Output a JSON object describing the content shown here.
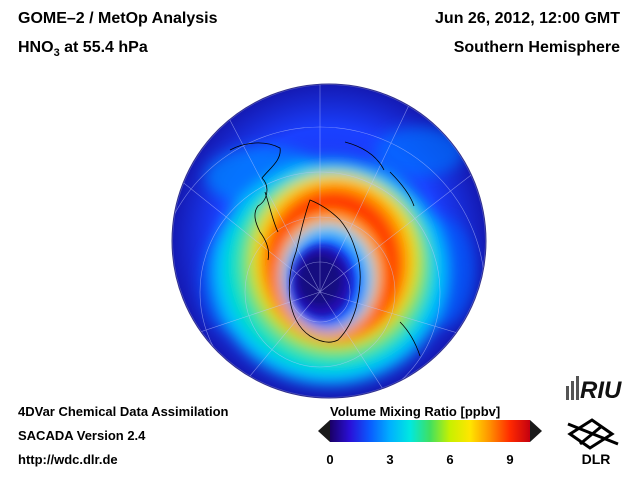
{
  "header": {
    "title_line1": "GOME–2 / MetOp Analysis",
    "species": "HNO",
    "species_sub": "3",
    "level": " at 55.4 hPa",
    "datetime": "Jun 26, 2012, 12:00 GMT",
    "region": "Southern Hemisphere"
  },
  "footer": {
    "line1": "4DVar Chemical Data Assimilation",
    "line2": "SACADA Version 2.4",
    "line3": "http://wdc.dlr.de"
  },
  "colorbar": {
    "title": "Volume Mixing Ratio [ppbv]",
    "ticks": [
      "0",
      "3",
      "6",
      "9"
    ],
    "min": 0,
    "max": 10,
    "colors": [
      "#1a0066",
      "#2a10d8",
      "#0a5cff",
      "#00b0ff",
      "#00e8e0",
      "#40e060",
      "#c8f000",
      "#ffe600",
      "#ff9000",
      "#ff2a00",
      "#c40010"
    ]
  },
  "logos": {
    "riu": "RIU",
    "dlr": "DLR"
  }
}
